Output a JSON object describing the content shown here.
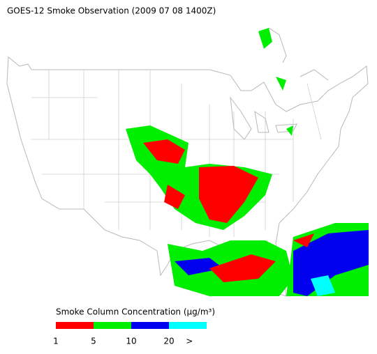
{
  "title": "GOES-12 Smoke Observation (2009 07 08  1400Z)",
  "legend": {
    "title": "Smoke Column Concentration (μg/m³)",
    "colors": [
      "#ff0000",
      "#00ee00",
      "#0000ee",
      "#00ffff"
    ],
    "ticks": [
      "1",
      "5",
      "10",
      "20",
      ">"
    ]
  }
}
